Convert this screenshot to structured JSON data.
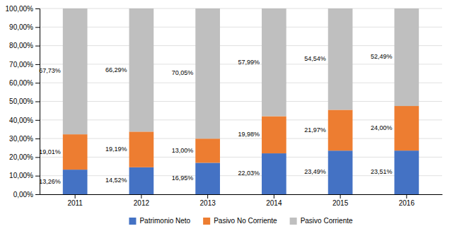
{
  "chart_data": {
    "type": "bar",
    "stacked": true,
    "categories": [
      "2011",
      "2012",
      "2013",
      "2014",
      "2015",
      "2016"
    ],
    "series": [
      {
        "name": "Patrimonio Neto",
        "color": "#4472C4",
        "values": [
          13.26,
          14.52,
          16.95,
          22.03,
          23.49,
          23.51
        ],
        "value_labels": [
          "13,26%",
          "14,52%",
          "16,95%",
          "22,03%",
          "23,49%",
          "23,51%"
        ]
      },
      {
        "name": "Pasivo No Corriente",
        "color": "#ED7D31",
        "values": [
          19.01,
          19.19,
          13.0,
          19.98,
          21.97,
          24.0
        ],
        "value_labels": [
          "19,01%",
          "19,19%",
          "13,00%",
          "19,98%",
          "21,97%",
          "24,00%"
        ]
      },
      {
        "name": "Pasivo Corriente",
        "color": "#BFBFBF",
        "values": [
          67.73,
          66.29,
          70.05,
          57.99,
          54.54,
          52.49
        ],
        "value_labels": [
          "67,73%",
          "66,29%",
          "70,05%",
          "57,99%",
          "54,54%",
          "52,49%"
        ]
      }
    ],
    "ylim": [
      0,
      100
    ],
    "yticks": [
      {
        "value": 0,
        "label": "0,00%"
      },
      {
        "value": 10,
        "label": "10,00%"
      },
      {
        "value": 20,
        "label": "20,00%"
      },
      {
        "value": 30,
        "label": "30,00%"
      },
      {
        "value": 40,
        "label": "40,00%"
      },
      {
        "value": 50,
        "label": "50,00%"
      },
      {
        "value": 60,
        "label": "60,00%"
      },
      {
        "value": 70,
        "label": "70,00%"
      },
      {
        "value": 80,
        "label": "80,00%"
      },
      {
        "value": 90,
        "label": "90,00%"
      },
      {
        "value": 100,
        "label": "100,00%"
      }
    ],
    "grid": true,
    "data_labels": true,
    "legend": "bottom"
  }
}
